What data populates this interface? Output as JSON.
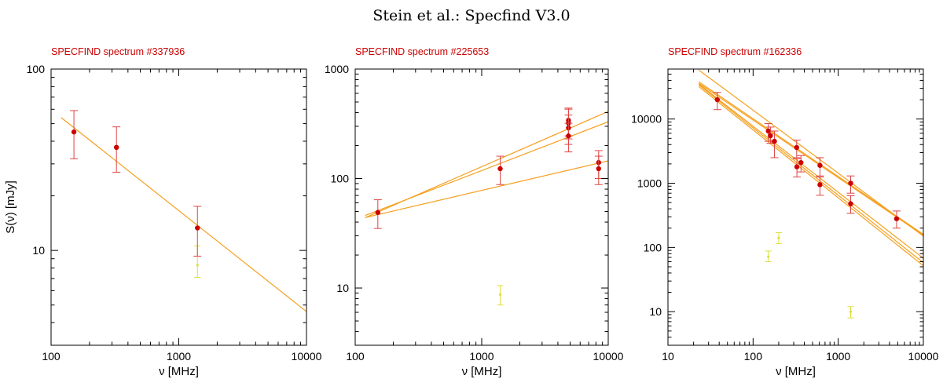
{
  "figure_title": "Stein et al.: Specfind V3.0",
  "colors": {
    "fit": "#f5a01e",
    "point": "#cc0000",
    "errorbar": "#dd4444",
    "excluded": "#dede40",
    "title": "#cc0000"
  },
  "chart_data": [
    {
      "type": "scatter",
      "title": "SPECFIND spectrum #337936",
      "xlabel": "ν [MHz]",
      "ylabel": "S(ν) [mJy]",
      "xscale": "log",
      "yscale": "log",
      "xlim": [
        100,
        10000
      ],
      "ylim": [
        3,
        100
      ],
      "xticks": [
        100,
        1000,
        10000
      ],
      "xtick_labels": [
        "100",
        "1000",
        "10000"
      ],
      "yticks": [
        10,
        100
      ],
      "ytick_labels": [
        "10",
        "100"
      ],
      "points": [
        {
          "x": 151,
          "y": 45,
          "lo": 32,
          "hi": 59
        },
        {
          "x": 325,
          "y": 37,
          "lo": 27,
          "hi": 48
        },
        {
          "x": 1400,
          "y": 13.3,
          "lo": 9.3,
          "hi": 17.5
        }
      ],
      "excluded_points": [
        {
          "x": 1400,
          "y": 8.3,
          "lo": 7.1,
          "hi": 10.6
        }
      ],
      "fits": [
        {
          "x": [
            120,
            10000
          ],
          "y": [
            54,
            4.6
          ]
        }
      ]
    },
    {
      "type": "scatter",
      "title": "SPECFIND spectrum #225653",
      "xlabel": "ν [MHz]",
      "ylabel": "",
      "xscale": "log",
      "yscale": "log",
      "xlim": [
        100,
        10000
      ],
      "ylim": [
        3,
        1000
      ],
      "xticks": [
        100,
        1000,
        10000
      ],
      "xtick_labels": [
        "100",
        "1000",
        "10000"
      ],
      "yticks": [
        10,
        100,
        1000
      ],
      "ytick_labels": [
        "10",
        "100",
        "1000"
      ],
      "points": [
        {
          "x": 151,
          "y": 49,
          "lo": 35,
          "hi": 64
        },
        {
          "x": 1400,
          "y": 123,
          "lo": 88,
          "hi": 160
        },
        {
          "x": 4850,
          "y": 340,
          "lo": 245,
          "hi": 440
        },
        {
          "x": 4850,
          "y": 320,
          "lo": 230,
          "hi": 430
        },
        {
          "x": 4850,
          "y": 290,
          "lo": 205,
          "hi": 380
        },
        {
          "x": 4850,
          "y": 245,
          "lo": 175,
          "hi": 320
        },
        {
          "x": 8400,
          "y": 140,
          "lo": 100,
          "hi": 180
        },
        {
          "x": 8400,
          "y": 123,
          "lo": 88,
          "hi": 160
        }
      ],
      "excluded_points": [
        {
          "x": 1400,
          "y": 8.7,
          "lo": 7.0,
          "hi": 10.5
        }
      ],
      "fits": [
        {
          "x": [
            120,
            10000
          ],
          "y": [
            44,
            410
          ]
        },
        {
          "x": [
            120,
            10000
          ],
          "y": [
            46,
            330
          ]
        },
        {
          "x": [
            120,
            10000
          ],
          "y": [
            44,
            145
          ]
        }
      ]
    },
    {
      "type": "scatter",
      "title": "SPECFIND spectrum #162336",
      "xlabel": "ν [MHz]",
      "ylabel": "",
      "xscale": "log",
      "yscale": "log",
      "xlim": [
        10,
        10000
      ],
      "ylim": [
        3,
        60000
      ],
      "xticks": [
        10,
        100,
        1000,
        10000
      ],
      "xtick_labels": [
        "10",
        "100",
        "1000",
        "10000"
      ],
      "yticks": [
        10,
        100,
        1000,
        10000
      ],
      "ytick_labels": [
        "10",
        "100",
        "1000",
        "10000"
      ],
      "points": [
        {
          "x": 38,
          "y": 20000,
          "lo": 14000,
          "hi": 26000
        },
        {
          "x": 151,
          "y": 6500,
          "lo": 4500,
          "hi": 8500
        },
        {
          "x": 160,
          "y": 5500,
          "lo": 4200,
          "hi": 7500
        },
        {
          "x": 178,
          "y": 4500,
          "lo": 2500,
          "hi": 6500
        },
        {
          "x": 325,
          "y": 3600,
          "lo": 2500,
          "hi": 4700
        },
        {
          "x": 327,
          "y": 1800,
          "lo": 1250,
          "hi": 2400
        },
        {
          "x": 365,
          "y": 2100,
          "lo": 1500,
          "hi": 2700
        },
        {
          "x": 610,
          "y": 1900,
          "lo": 1300,
          "hi": 2500
        },
        {
          "x": 610,
          "y": 950,
          "lo": 650,
          "hi": 1250
        },
        {
          "x": 1400,
          "y": 1000,
          "lo": 700,
          "hi": 1300
        },
        {
          "x": 1400,
          "y": 480,
          "lo": 340,
          "hi": 640
        },
        {
          "x": 4850,
          "y": 280,
          "lo": 200,
          "hi": 370
        }
      ],
      "excluded_points": [
        {
          "x": 151,
          "y": 72,
          "lo": 60,
          "hi": 88
        },
        {
          "x": 200,
          "y": 140,
          "lo": 115,
          "hi": 170
        },
        {
          "x": 1400,
          "y": 10,
          "lo": 8,
          "hi": 12
        }
      ],
      "fits": [
        {
          "x": [
            23,
            10000
          ],
          "y": [
            58000,
            150
          ]
        },
        {
          "x": [
            23,
            10000
          ],
          "y": [
            38000,
            160
          ]
        },
        {
          "x": [
            23,
            10000
          ],
          "y": [
            36000,
            155
          ]
        },
        {
          "x": [
            23,
            10000
          ],
          "y": [
            35000,
            68
          ]
        },
        {
          "x": [
            23,
            10000
          ],
          "y": [
            34000,
            58
          ]
        },
        {
          "x": [
            23,
            10000
          ],
          "y": [
            32000,
            52
          ]
        }
      ]
    }
  ]
}
